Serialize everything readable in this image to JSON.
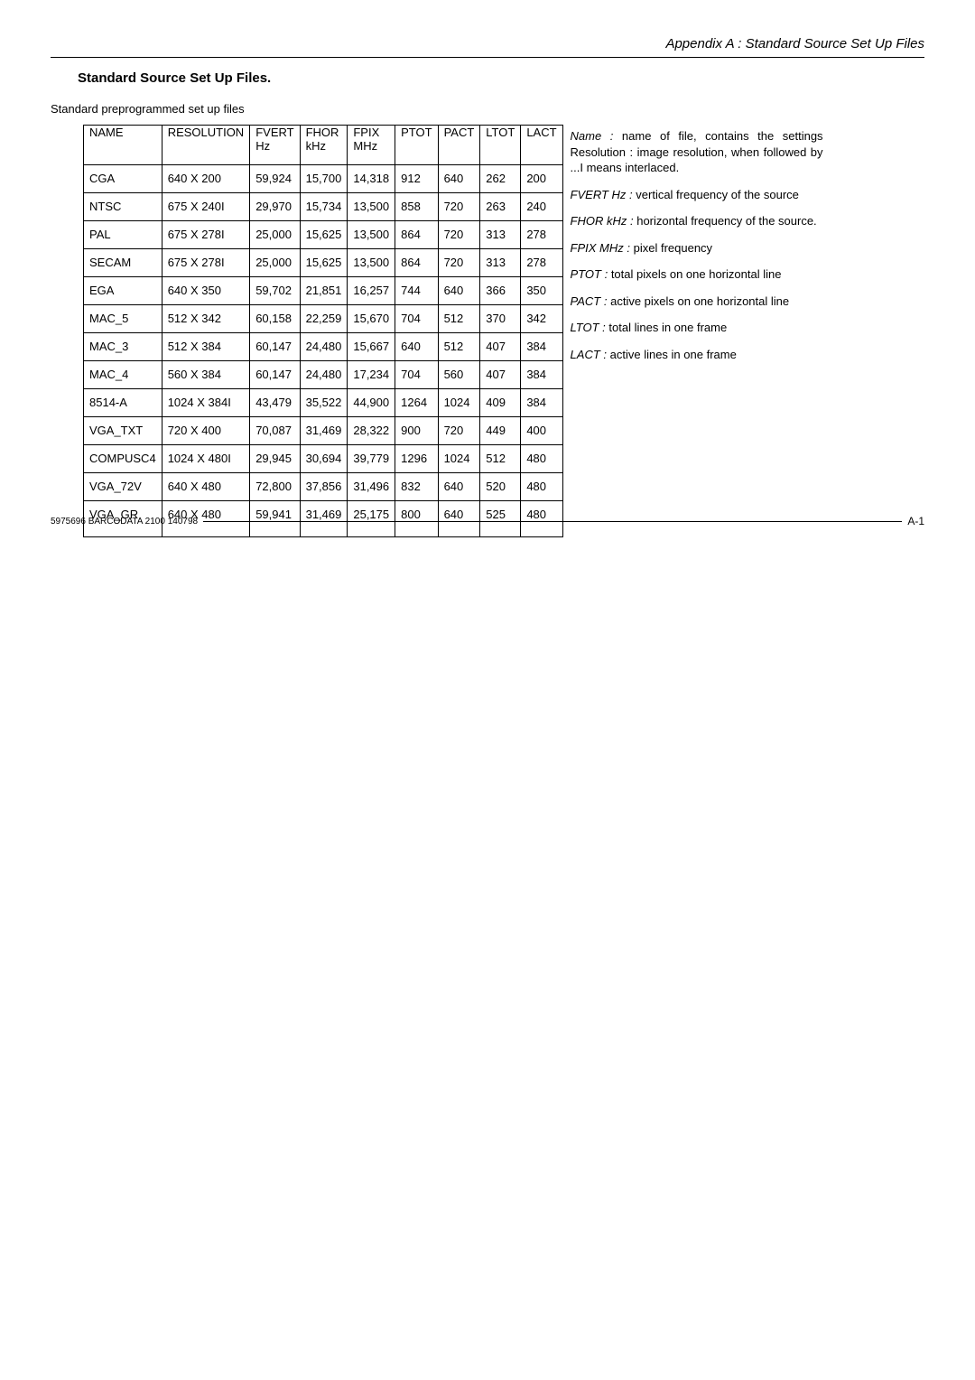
{
  "header": {
    "running_title": "Appendix A : Standard Source Set Up Files"
  },
  "section": {
    "title": "Standard Source Set Up Files.",
    "subcaption": "Standard preprogrammed set up files"
  },
  "table": {
    "columns": [
      {
        "label": "NAME",
        "sub": "",
        "class": "col-name"
      },
      {
        "label": "RESOLUTION",
        "sub": "",
        "class": "col-res"
      },
      {
        "label": "FVERT",
        "sub": "Hz",
        "class": "col-fvert"
      },
      {
        "label": "FHOR",
        "sub": "kHz",
        "class": "col-fhor"
      },
      {
        "label": "FPIX",
        "sub": "MHz",
        "class": "col-fpix"
      },
      {
        "label": "PTOT",
        "sub": "",
        "class": "col-ptot"
      },
      {
        "label": "PACT",
        "sub": "",
        "class": "col-pact"
      },
      {
        "label": "LTOT",
        "sub": "",
        "class": "col-ltot"
      },
      {
        "label": "LACT",
        "sub": "",
        "class": "col-lact"
      }
    ],
    "rows": [
      [
        "CGA",
        "640 X 200",
        "59,924",
        "15,700",
        "14,318",
        "912",
        "640",
        "262",
        "200"
      ],
      [
        "NTSC",
        "675 X 240I",
        "29,970",
        "15,734",
        "13,500",
        "858",
        "720",
        "263",
        "240"
      ],
      [
        "PAL",
        "675 X 278I",
        "25,000",
        "15,625",
        "13,500",
        "864",
        "720",
        "313",
        "278"
      ],
      [
        "SECAM",
        "675 X 278I",
        "25,000",
        "15,625",
        "13,500",
        "864",
        "720",
        "313",
        "278"
      ],
      [
        "EGA",
        "640 X 350",
        "59,702",
        "21,851",
        "16,257",
        "744",
        "640",
        "366",
        "350"
      ],
      [
        "MAC_5",
        "512 X 342",
        "60,158",
        "22,259",
        "15,670",
        "704",
        "512",
        "370",
        "342"
      ],
      [
        "MAC_3",
        "512 X 384",
        "60,147",
        "24,480",
        "15,667",
        "640",
        "512",
        "407",
        "384"
      ],
      [
        "MAC_4",
        "560 X 384",
        "60,147",
        "24,480",
        "17,234",
        "704",
        "560",
        "407",
        "384"
      ],
      [
        "8514-A",
        "1024 X 384I",
        "43,479",
        "35,522",
        "44,900",
        "1264",
        "1024",
        "409",
        "384"
      ],
      [
        "VGA_TXT",
        "720 X 400",
        "70,087",
        "31,469",
        "28,322",
        "900",
        "720",
        "449",
        "400"
      ],
      [
        "COMPUSC4",
        "1024 X 480I",
        "29,945",
        "30,694",
        "39,779",
        "1296",
        "1024",
        "512",
        "480"
      ],
      [
        "VGA_72V",
        "640 X 480",
        "72,800",
        "37,856",
        "31,496",
        "832",
        "640",
        "520",
        "480"
      ],
      [
        "VGA_GR",
        "640 X 480",
        "59,941",
        "31,469",
        "25,175",
        "800",
        "640",
        "525",
        "480"
      ]
    ]
  },
  "definitions": [
    {
      "term": "Name :",
      "text": " name of file, contains the settings Resolution : image resolution, when followed by ...I means interlaced."
    },
    {
      "term": "FVERT Hz :",
      "text": " vertical frequency of the source"
    },
    {
      "term": "FHOR kHz :",
      "text": " horizontal frequency of the source."
    },
    {
      "term": "FPIX MHz :",
      "text": " pixel frequency"
    },
    {
      "term": "PTOT :",
      "text": " total pixels on one horizontal line"
    },
    {
      "term": "PACT :",
      "text": " active pixels on one horizontal line"
    },
    {
      "term": "LTOT :",
      "text": "  total lines in one frame"
    },
    {
      "term": "LACT :",
      "text": " active lines in one frame"
    }
  ],
  "footer": {
    "code": "5975696 BARCODATA 2100 140798",
    "page": "A-1"
  }
}
